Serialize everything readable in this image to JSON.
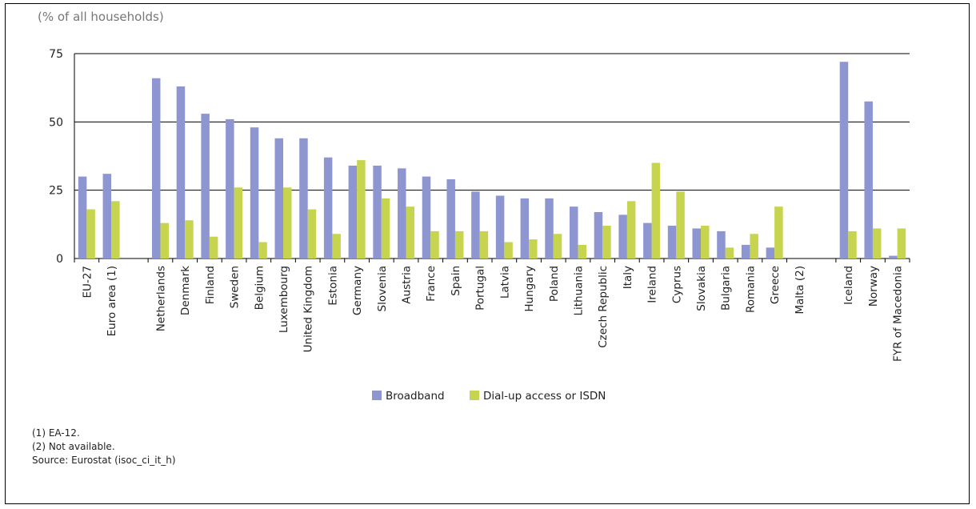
{
  "unit_label": "(% of all households)",
  "colors": {
    "broadband": "#8e96d2",
    "dialup": "#c7d44f",
    "grid": "#000000"
  },
  "chart_data": {
    "type": "bar",
    "title": "",
    "ylabel": "(% of all households)",
    "ylim": [
      0,
      75
    ],
    "yticks": [
      0,
      25,
      50,
      75
    ],
    "grid": true,
    "legend_position": "bottom-center",
    "groups": [
      [
        "EU-27",
        "Euro area (1)"
      ],
      [
        "Netherlands",
        "Denmark",
        "Finland",
        "Sweden",
        "Belgium",
        "Luxembourg",
        "United Kingdom",
        "Estonia",
        "Germany",
        "Slovenia",
        "Austria",
        "France",
        "Spain",
        "Portugal",
        "Latvia",
        "Hungary",
        "Poland",
        "Lithuania",
        "Czech Republic",
        "Italy",
        "Ireland",
        "Cyprus",
        "Slovakia",
        "Bulgaria",
        "Romania",
        "Greece",
        "Malta (2)"
      ],
      [
        "Iceland",
        "Norway",
        "FYR of Macedonia"
      ]
    ],
    "categories": [
      "EU-27",
      "Euro area (1)",
      "Netherlands",
      "Denmark",
      "Finland",
      "Sweden",
      "Belgium",
      "Luxembourg",
      "United Kingdom",
      "Estonia",
      "Germany",
      "Slovenia",
      "Austria",
      "France",
      "Spain",
      "Portugal",
      "Latvia",
      "Hungary",
      "Poland",
      "Lithuania",
      "Czech Republic",
      "Italy",
      "Ireland",
      "Cyprus",
      "Slovakia",
      "Bulgaria",
      "Romania",
      "Greece",
      "Malta (2)",
      "Iceland",
      "Norway",
      "FYR of Macedonia"
    ],
    "series": [
      {
        "name": "Broadband",
        "values": [
          30,
          31,
          66,
          63,
          53,
          51,
          48,
          44,
          44,
          37,
          34,
          34,
          33,
          30,
          29,
          24.5,
          23,
          22,
          22,
          19,
          17,
          16,
          13,
          12,
          11,
          10,
          5,
          4,
          null,
          72,
          57.5,
          1
        ]
      },
      {
        "name": "Dial-up access or ISDN",
        "values": [
          18,
          21,
          13,
          14,
          8,
          26,
          6,
          26,
          18,
          9,
          36,
          22,
          19,
          10,
          10,
          10,
          6,
          7,
          9,
          5,
          12,
          21,
          35,
          24.5,
          12,
          4,
          9,
          19,
          null,
          10,
          11,
          11
        ]
      }
    ]
  },
  "notes": [
    "(1) EA-12.",
    "(2) Not available.",
    "Source: Eurostat (isoc_ci_it_h)"
  ]
}
